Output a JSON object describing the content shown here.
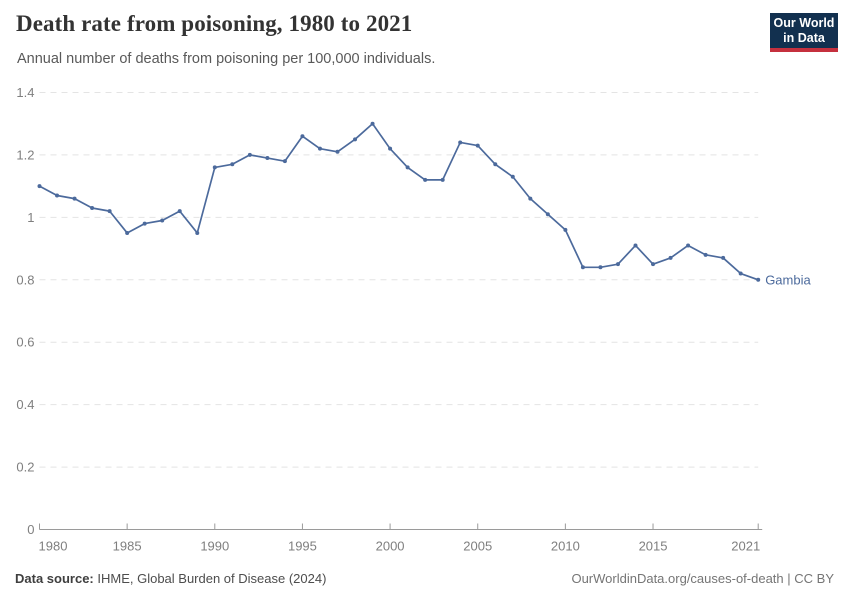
{
  "header": {
    "title": "Death rate from poisoning, 1980 to 2021",
    "subtitle": "Annual number of deaths from poisoning per 100,000 individuals.",
    "logo": {
      "line1": "Our World",
      "line2": "in Data",
      "bg_color": "#12304f",
      "bar_color": "#c5303e"
    }
  },
  "chart_data": {
    "type": "line",
    "title": "Death rate from poisoning, 1980 to 2021",
    "entity": "Gambia",
    "xlabel": "",
    "ylabel": "Annual number of deaths from poisoning per 100,000 individuals",
    "ylim": [
      0,
      1.4
    ],
    "yticks": [
      0,
      0.2,
      0.4,
      0.6,
      0.8,
      1,
      1.2,
      1.4
    ],
    "xticks": [
      1980,
      1985,
      1990,
      1995,
      2000,
      2005,
      2010,
      2015,
      2021
    ],
    "grid": true,
    "legend_position": "end-of-line-label",
    "line_color": "#4C6A9C",
    "x": [
      1980,
      1981,
      1982,
      1983,
      1984,
      1985,
      1986,
      1987,
      1988,
      1989,
      1990,
      1991,
      1992,
      1993,
      1994,
      1995,
      1996,
      1997,
      1998,
      1999,
      2000,
      2001,
      2002,
      2003,
      2004,
      2005,
      2006,
      2007,
      2008,
      2009,
      2010,
      2011,
      2012,
      2013,
      2014,
      2015,
      2016,
      2017,
      2018,
      2019,
      2020,
      2021
    ],
    "values": [
      1.1,
      1.07,
      1.06,
      1.03,
      1.02,
      0.95,
      0.98,
      0.99,
      1.02,
      0.95,
      1.16,
      1.17,
      1.2,
      1.19,
      1.18,
      1.26,
      1.22,
      1.21,
      1.25,
      1.3,
      1.22,
      1.16,
      1.12,
      1.12,
      1.24,
      1.23,
      1.17,
      1.13,
      1.06,
      1.01,
      0.96,
      0.84,
      0.84,
      0.85,
      0.91,
      0.85,
      0.87,
      0.91,
      0.88,
      0.87,
      0.82,
      0.8
    ]
  },
  "footer": {
    "source_label": "Data source:",
    "source_text": " IHME, Global Burden of Disease (2024)",
    "link": "OurWorldinData.org/causes-of-death",
    "separator": " | ",
    "license": "CC BY"
  }
}
